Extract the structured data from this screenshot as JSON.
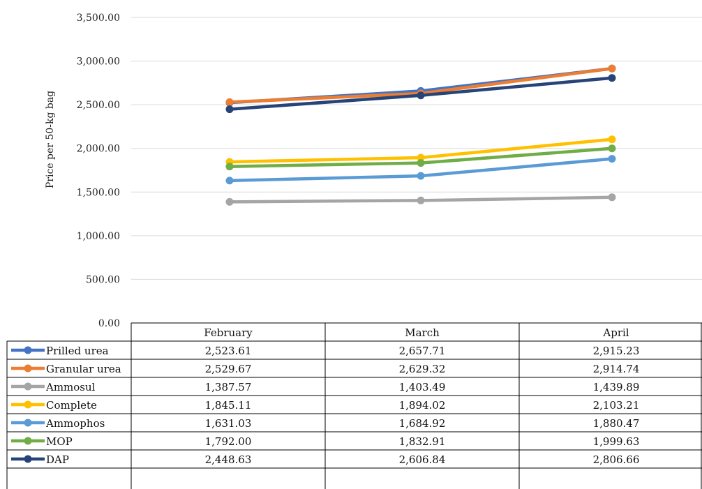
{
  "chart_data": {
    "type": "line",
    "ylabel": "Price per 50-kg bag",
    "ylim": [
      0,
      3500
    ],
    "yticks": [
      "0.00",
      "500.00",
      "1,000.00",
      "1,500.00",
      "2,000.00",
      "2,500.00",
      "3,000.00",
      "3,500.00"
    ],
    "ytick_values": [
      0,
      500,
      1000,
      1500,
      2000,
      2500,
      3000,
      3500
    ],
    "categories": [
      "February",
      "March",
      "April"
    ],
    "grid": true,
    "legend": "data-table",
    "series": [
      {
        "name": "Prilled urea",
        "color": "#4472c4",
        "values": [
          2523.61,
          2657.71,
          2915.23
        ],
        "labels": [
          "2,523.61",
          "2,657.71",
          "2,915.23"
        ]
      },
      {
        "name": "Granular urea",
        "color": "#ed7d31",
        "values": [
          2529.67,
          2629.32,
          2914.74
        ],
        "labels": [
          "2,529.67",
          "2,629.32",
          "2,914.74"
        ]
      },
      {
        "name": "Ammosul",
        "color": "#a5a5a5",
        "values": [
          1387.57,
          1403.49,
          1439.89
        ],
        "labels": [
          "1,387.57",
          "1,403.49",
          "1,439.89"
        ]
      },
      {
        "name": "Complete",
        "color": "#ffc000",
        "values": [
          1845.11,
          1894.02,
          2103.21
        ],
        "labels": [
          "1,845.11",
          "1,894.02",
          "2,103.21"
        ]
      },
      {
        "name": "Ammophos",
        "color": "#5b9bd5",
        "values": [
          1631.03,
          1684.92,
          1880.47
        ],
        "labels": [
          "1,631.03",
          "1,684.92",
          "1,880.47"
        ]
      },
      {
        "name": "MOP",
        "color": "#70ad47",
        "values": [
          1792.0,
          1832.91,
          1999.63
        ],
        "labels": [
          "1,792.00",
          "1,832.91",
          "1,999.63"
        ]
      },
      {
        "name": "DAP",
        "color": "#264478",
        "values": [
          2448.63,
          2606.84,
          2806.66
        ],
        "labels": [
          "2,448.63",
          "2,606.84",
          "2,806.66"
        ]
      }
    ]
  }
}
